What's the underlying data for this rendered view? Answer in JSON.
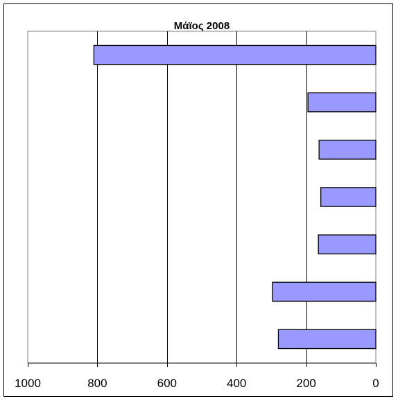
{
  "chart_data": {
    "type": "bar",
    "orientation": "horizontal",
    "x_axis_reversed": true,
    "title": "Μάϊος  2008",
    "xlabel": "",
    "ylabel": "",
    "xlim": [
      0,
      1000
    ],
    "x_ticks": [
      1000,
      800,
      600,
      400,
      200,
      0
    ],
    "tick_labels": [
      "1000",
      "800",
      "600",
      "400",
      "200",
      "0"
    ],
    "categories": [
      "",
      "",
      "",
      "",
      "",
      "",
      ""
    ],
    "values": [
      810,
      195,
      163,
      158,
      165,
      297,
      280
    ],
    "grid": "vertical",
    "legend": "none",
    "colors": {
      "bar_fill": "#9999ff",
      "bar_stroke": "#000000",
      "plot_border": "#808080",
      "gridline": "#000000",
      "text": "#000000"
    }
  }
}
